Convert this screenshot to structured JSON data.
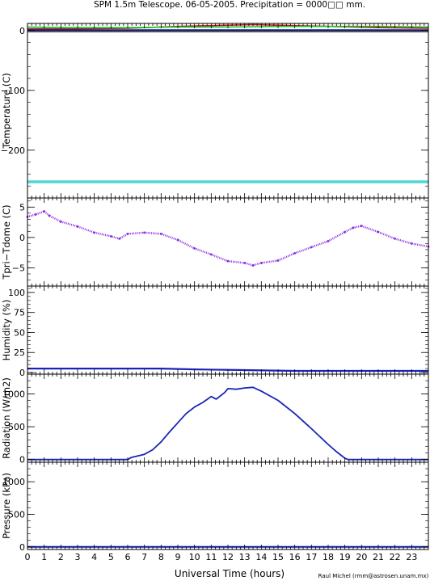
{
  "title": "SPM 1.5m Telescope. 06-05-2005. Precipitation = 0000□□ mm.",
  "credit": "Raul Michel (rmm@astrosen.unam.mx)",
  "colors": {
    "frame": "#000000",
    "red": "#c4161c",
    "green": "#19c619",
    "navy": "#0a1fa8",
    "black": "#000000",
    "gray": "#7a7a7a",
    "cyan": "#4fd6d6",
    "purple": "#8a2be2",
    "blue": "#1a24b8"
  },
  "chart_data": [
    {
      "type": "line",
      "title": "",
      "xlabel": "",
      "ylabel": "Temperature (C)",
      "xlim": [
        0,
        24
      ],
      "ylim": [
        -280,
        12
      ],
      "yticks": [
        0,
        -100,
        -200
      ],
      "ytick_labels": [
        "0",
        "−100",
        "−200"
      ],
      "series": [
        {
          "color": "red",
          "x": [
            0,
            3,
            6,
            9,
            12,
            13.5,
            15,
            18,
            21,
            24
          ],
          "y": [
            3,
            3,
            4,
            7,
            9,
            10,
            9,
            7,
            5,
            4
          ]
        },
        {
          "color": "green",
          "x": [
            0,
            3,
            6,
            9,
            12,
            15,
            18,
            21,
            24
          ],
          "y": [
            6,
            5,
            5,
            6,
            6,
            7,
            7,
            7,
            6
          ]
        },
        {
          "color": "navy",
          "x": [
            0,
            24
          ],
          "y": [
            1,
            1
          ]
        },
        {
          "color": "black",
          "x": [
            0,
            24
          ],
          "y": [
            -1,
            -1
          ]
        },
        {
          "color": "gray",
          "x": [
            0,
            24
          ],
          "y": [
            -2,
            -2
          ]
        },
        {
          "color": "cyan",
          "x": [
            0,
            24
          ],
          "y": [
            -253,
            -253
          ]
        }
      ]
    },
    {
      "type": "scatter",
      "title": "",
      "xlabel": "",
      "ylabel": "Tpri−Tdome (C)",
      "xlim": [
        0,
        24
      ],
      "ylim": [
        -8,
        6.5
      ],
      "yticks": [
        5,
        0,
        -5
      ],
      "ytick_labels": [
        "5",
        "0",
        "−5"
      ],
      "series": [
        {
          "color": "purple",
          "x": [
            0,
            0.5,
            1,
            1.3,
            2,
            3,
            4,
            5,
            5.5,
            6,
            7,
            8,
            9,
            10,
            11,
            12,
            13,
            13.5,
            14,
            15,
            16,
            17,
            18,
            19,
            19.5,
            20,
            21,
            22,
            23,
            24
          ],
          "y": [
            3.4,
            3.8,
            4.3,
            3.6,
            2.6,
            1.8,
            0.8,
            0.2,
            -0.2,
            0.6,
            0.8,
            0.6,
            -0.4,
            -1.8,
            -2.8,
            -3.9,
            -4.2,
            -4.6,
            -4.2,
            -3.8,
            -2.6,
            -1.6,
            -0.6,
            0.9,
            1.6,
            1.9,
            0.9,
            -0.2,
            -1.0,
            -1.5
          ]
        }
      ]
    },
    {
      "type": "line",
      "title": "",
      "xlabel": "",
      "ylabel": "Humidity (%)",
      "xlim": [
        0,
        24
      ],
      "ylim": [
        -2,
        108
      ],
      "yticks": [
        100,
        75,
        50,
        25,
        0
      ],
      "ytick_labels": [
        "100",
        "75",
        "50",
        "25",
        "0"
      ],
      "series": [
        {
          "color": "blue",
          "x": [
            0,
            4,
            8,
            10,
            13,
            16,
            20,
            24
          ],
          "y": [
            5,
            5,
            5,
            4,
            3,
            2,
            2,
            2
          ]
        }
      ]
    },
    {
      "type": "line",
      "title": "",
      "xlabel": "",
      "ylabel": "Radiation (W/m2)",
      "xlim": [
        0,
        24
      ],
      "ylim": [
        -40,
        1300
      ],
      "yticks": [
        1000,
        500,
        0
      ],
      "ytick_labels": [
        "1000",
        "500",
        "0"
      ],
      "series": [
        {
          "color": "blue",
          "x": [
            0,
            6,
            6.2,
            7,
            7.5,
            8,
            8.5,
            9,
            9.5,
            10,
            10.5,
            11,
            11.3,
            11.8,
            12,
            12.5,
            13,
            13.5,
            14,
            15,
            16,
            17,
            18,
            18.5,
            19,
            19.2,
            24
          ],
          "y": [
            0,
            0,
            30,
            80,
            150,
            270,
            420,
            560,
            700,
            800,
            870,
            960,
            920,
            1020,
            1080,
            1070,
            1090,
            1100,
            1040,
            900,
            700,
            470,
            230,
            120,
            20,
            0,
            0
          ]
        }
      ]
    },
    {
      "type": "line",
      "title": "",
      "xlabel": "Universal Time (hours)",
      "ylabel": "Pressure (kPa)",
      "xlim": [
        0,
        24
      ],
      "ylim": [
        -40,
        1300
      ],
      "yticks": [
        1000,
        500,
        0
      ],
      "ytick_labels": [
        "1000",
        "500",
        "0"
      ],
      "xticks": [
        0,
        1,
        2,
        3,
        4,
        5,
        6,
        7,
        8,
        9,
        10,
        11,
        12,
        13,
        14,
        15,
        16,
        17,
        18,
        19,
        20,
        21,
        22,
        23
      ],
      "xtick_labels": [
        "0",
        "1",
        "2",
        "3",
        "4",
        "5",
        "6",
        "7",
        "8",
        "9",
        "10",
        "11",
        "12",
        "13",
        "14",
        "15",
        "16",
        "17",
        "18",
        "19",
        "20",
        "21",
        "22",
        "23"
      ],
      "series": [
        {
          "color": "navy",
          "x": [
            0,
            24
          ],
          "y": [
            0,
            0
          ]
        }
      ]
    }
  ]
}
